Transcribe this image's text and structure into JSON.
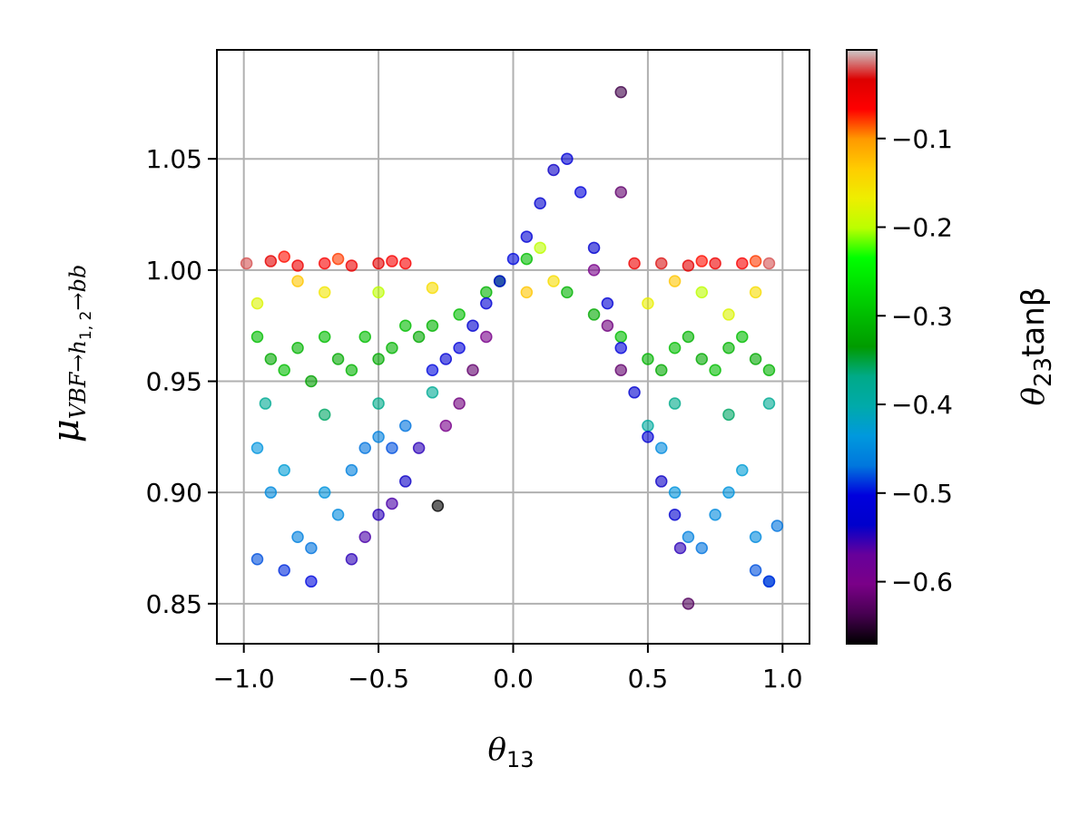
{
  "chart_data": {
    "type": "scatter",
    "xlabel": "θ₁₃",
    "ylabel": "μVBF→h1,2→bb",
    "ylabel_parts": {
      "mu": "μ",
      "sub_main": "VBF→h",
      "sub_sub": "1, 2",
      "sub_tail": "→bb"
    },
    "xlabel_parts": {
      "theta": "θ",
      "sub": "13"
    },
    "xlim": [
      -1.1,
      1.1
    ],
    "ylim": [
      0.832,
      1.099
    ],
    "xticks": [
      -1.0,
      -0.5,
      0.0,
      0.5,
      1.0
    ],
    "xtick_labels": [
      "−1.0",
      "−0.5",
      "0.0",
      "0.5",
      "1.0"
    ],
    "yticks": [
      0.85,
      0.9,
      0.95,
      1.0,
      1.05
    ],
    "ytick_labels": [
      "0.85",
      "0.90",
      "0.95",
      "1.00",
      "1.05"
    ],
    "grid": true,
    "colorbar": {
      "label": "θ23tanβ",
      "label_parts": {
        "theta": "θ",
        "sub": "23",
        "tail": "tanβ"
      },
      "range": [
        -0.67,
        0.0
      ],
      "ticks": [
        -0.1,
        -0.2,
        -0.3,
        -0.4,
        -0.5,
        -0.6
      ],
      "tick_labels": [
        "−0.1",
        "−0.2",
        "−0.3",
        "−0.4",
        "−0.5",
        "−0.6"
      ],
      "colormap": "nipy_spectral",
      "colormap_stops": [
        [
          "0.00",
          "#000000"
        ],
        [
          "0.05",
          "#470051"
        ],
        [
          "0.10",
          "#7a0088"
        ],
        [
          "0.15",
          "#67009b"
        ],
        [
          "0.20",
          "#0000cc"
        ],
        [
          "0.25",
          "#0000dd"
        ],
        [
          "0.30",
          "#0077dd"
        ],
        [
          "0.35",
          "#0099dd"
        ],
        [
          "0.40",
          "#00aaaa"
        ],
        [
          "0.45",
          "#00aa88"
        ],
        [
          "0.50",
          "#009b00"
        ],
        [
          "0.55",
          "#00bb00"
        ],
        [
          "0.60",
          "#00dd00"
        ],
        [
          "0.65",
          "#00ff00"
        ],
        [
          "0.70",
          "#bbff00"
        ],
        [
          "0.75",
          "#eeee00"
        ],
        [
          "0.80",
          "#ffcc00"
        ],
        [
          "0.85",
          "#ff9900"
        ],
        [
          "0.90",
          "#ff0000"
        ],
        [
          "0.95",
          "#dd0000"
        ],
        [
          "1.00",
          "#cccccc"
        ]
      ]
    },
    "point_opacity": 0.6,
    "series": [
      {
        "points": [
          [
            -0.99,
            1.003,
            -0.02
          ],
          [
            -0.9,
            1.004,
            -0.04
          ],
          [
            -0.8,
            1.002,
            -0.05
          ],
          [
            -0.7,
            1.003,
            -0.06
          ],
          [
            -0.6,
            1.002,
            -0.05
          ],
          [
            -0.5,
            1.003,
            -0.04
          ],
          [
            -0.4,
            1.003,
            -0.06
          ],
          [
            -0.85,
            1.006,
            -0.07
          ],
          [
            -0.65,
            1.005,
            -0.08
          ],
          [
            -0.45,
            1.004,
            -0.06
          ],
          [
            0.45,
            1.003,
            -0.05
          ],
          [
            0.55,
            1.003,
            -0.03
          ],
          [
            0.65,
            1.002,
            -0.04
          ],
          [
            0.75,
            1.003,
            -0.05
          ],
          [
            0.85,
            1.003,
            -0.06
          ],
          [
            0.95,
            1.003,
            -0.02
          ],
          [
            0.7,
            1.004,
            -0.07
          ],
          [
            0.9,
            1.004,
            -0.08
          ],
          [
            -0.95,
            0.985,
            -0.18
          ],
          [
            -0.7,
            0.99,
            -0.16
          ],
          [
            -0.5,
            0.99,
            -0.2
          ],
          [
            -0.3,
            0.992,
            -0.15
          ],
          [
            -0.8,
            0.995,
            -0.13
          ],
          [
            0.5,
            0.985,
            -0.17
          ],
          [
            0.7,
            0.99,
            -0.2
          ],
          [
            0.9,
            0.99,
            -0.15
          ],
          [
            0.6,
            0.995,
            -0.13
          ],
          [
            0.8,
            0.98,
            -0.18
          ],
          [
            0.1,
            1.01,
            -0.2
          ],
          [
            0.15,
            0.995,
            -0.15
          ],
          [
            0.05,
            0.99,
            -0.13
          ],
          [
            -0.95,
            0.97,
            -0.3
          ],
          [
            -0.9,
            0.96,
            -0.32
          ],
          [
            -0.85,
            0.955,
            -0.3
          ],
          [
            -0.8,
            0.965,
            -0.31
          ],
          [
            -0.75,
            0.95,
            -0.33
          ],
          [
            -0.7,
            0.97,
            -0.3
          ],
          [
            -0.65,
            0.96,
            -0.32
          ],
          [
            -0.6,
            0.955,
            -0.31
          ],
          [
            -0.55,
            0.97,
            -0.3
          ],
          [
            -0.5,
            0.96,
            -0.32
          ],
          [
            -0.45,
            0.965,
            -0.31
          ],
          [
            -0.4,
            0.975,
            -0.3
          ],
          [
            -0.35,
            0.97,
            -0.32
          ],
          [
            -0.3,
            0.975,
            -0.31
          ],
          [
            -0.2,
            0.98,
            -0.3
          ],
          [
            -0.1,
            0.99,
            -0.31
          ],
          [
            -0.05,
            0.995,
            -0.3
          ],
          [
            0.05,
            1.005,
            -0.3
          ],
          [
            0.2,
            0.99,
            -0.31
          ],
          [
            0.3,
            0.98,
            -0.32
          ],
          [
            0.4,
            0.97,
            -0.3
          ],
          [
            0.5,
            0.96,
            -0.31
          ],
          [
            0.55,
            0.955,
            -0.32
          ],
          [
            0.6,
            0.965,
            -0.3
          ],
          [
            0.65,
            0.97,
            -0.31
          ],
          [
            0.7,
            0.96,
            -0.32
          ],
          [
            0.75,
            0.955,
            -0.3
          ],
          [
            0.8,
            0.965,
            -0.31
          ],
          [
            0.85,
            0.97,
            -0.3
          ],
          [
            0.9,
            0.96,
            -0.32
          ],
          [
            0.95,
            0.955,
            -0.31
          ],
          [
            -0.92,
            0.94,
            -0.38
          ],
          [
            -0.7,
            0.935,
            -0.36
          ],
          [
            -0.5,
            0.94,
            -0.37
          ],
          [
            -0.3,
            0.945,
            -0.38
          ],
          [
            0.6,
            0.94,
            -0.37
          ],
          [
            0.8,
            0.935,
            -0.36
          ],
          [
            0.95,
            0.94,
            -0.38
          ],
          [
            0.5,
            0.93,
            -0.39
          ],
          [
            -0.95,
            0.92,
            -0.44
          ],
          [
            -0.9,
            0.9,
            -0.45
          ],
          [
            -0.85,
            0.91,
            -0.43
          ],
          [
            -0.8,
            0.88,
            -0.46
          ],
          [
            -0.75,
            0.875,
            -0.47
          ],
          [
            -0.7,
            0.9,
            -0.44
          ],
          [
            -0.65,
            0.89,
            -0.45
          ],
          [
            -0.6,
            0.91,
            -0.46
          ],
          [
            -0.55,
            0.92,
            -0.47
          ],
          [
            -0.5,
            0.925,
            -0.46
          ],
          [
            -0.45,
            0.92,
            -0.48
          ],
          [
            -0.4,
            0.93,
            -0.47
          ],
          [
            0.55,
            0.92,
            -0.45
          ],
          [
            0.6,
            0.9,
            -0.44
          ],
          [
            0.65,
            0.88,
            -0.46
          ],
          [
            0.7,
            0.875,
            -0.47
          ],
          [
            0.75,
            0.89,
            -0.45
          ],
          [
            0.8,
            0.9,
            -0.44
          ],
          [
            0.85,
            0.91,
            -0.43
          ],
          [
            0.9,
            0.88,
            -0.45
          ],
          [
            0.95,
            0.86,
            -0.46
          ],
          [
            0.98,
            0.885,
            -0.47
          ],
          [
            -0.95,
            0.87,
            -0.48
          ],
          [
            -0.85,
            0.865,
            -0.49
          ],
          [
            -0.75,
            0.86,
            -0.5
          ],
          [
            0.9,
            0.865,
            -0.48
          ],
          [
            0.95,
            0.86,
            -0.49
          ],
          [
            -0.3,
            0.955,
            -0.5
          ],
          [
            -0.25,
            0.96,
            -0.52
          ],
          [
            -0.2,
            0.965,
            -0.51
          ],
          [
            -0.15,
            0.975,
            -0.53
          ],
          [
            -0.1,
            0.985,
            -0.52
          ],
          [
            -0.05,
            0.995,
            -0.51
          ],
          [
            0.0,
            1.005,
            -0.5
          ],
          [
            0.05,
            1.015,
            -0.52
          ],
          [
            0.1,
            1.03,
            -0.53
          ],
          [
            0.15,
            1.045,
            -0.54
          ],
          [
            0.2,
            1.05,
            -0.52
          ],
          [
            0.25,
            1.035,
            -0.51
          ],
          [
            0.3,
            1.01,
            -0.53
          ],
          [
            0.35,
            0.985,
            -0.52
          ],
          [
            0.4,
            0.965,
            -0.51
          ],
          [
            0.45,
            0.945,
            -0.53
          ],
          [
            0.5,
            0.925,
            -0.52
          ],
          [
            0.55,
            0.905,
            -0.54
          ],
          [
            0.6,
            0.89,
            -0.53
          ],
          [
            0.62,
            0.875,
            -0.55
          ],
          [
            -0.5,
            0.89,
            -0.55
          ],
          [
            -0.45,
            0.895,
            -0.56
          ],
          [
            -0.4,
            0.905,
            -0.54
          ],
          [
            -0.35,
            0.92,
            -0.55
          ],
          [
            -0.55,
            0.88,
            -0.56
          ],
          [
            -0.6,
            0.87,
            -0.55
          ],
          [
            -0.25,
            0.93,
            -0.6
          ],
          [
            -0.2,
            0.94,
            -0.61
          ],
          [
            -0.15,
            0.955,
            -0.62
          ],
          [
            -0.1,
            0.97,
            -0.6
          ],
          [
            0.3,
            1.0,
            -0.6
          ],
          [
            0.35,
            0.975,
            -0.61
          ],
          [
            0.4,
            0.955,
            -0.62
          ],
          [
            0.4,
            1.08,
            -0.64
          ],
          [
            0.65,
            0.85,
            -0.63
          ],
          [
            0.4,
            1.035,
            -0.62
          ],
          [
            -0.28,
            0.894,
            -0.67
          ]
        ]
      }
    ]
  }
}
